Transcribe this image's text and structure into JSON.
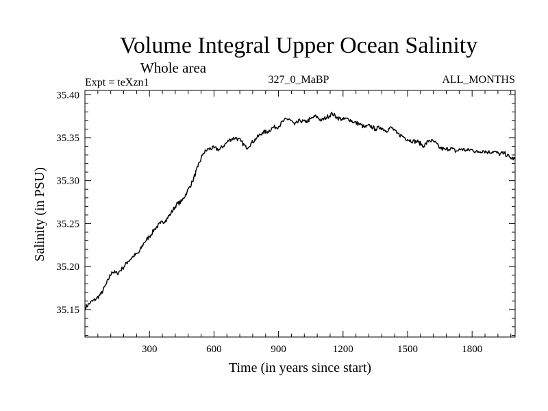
{
  "chart_data": {
    "type": "line",
    "title": "Volume Integral Upper Ocean Salinity",
    "subtitle": "Whole area",
    "left_label": "Expt = teXzn1",
    "center_label": "327_0_MaBP",
    "right_label": "ALL_MONTHS",
    "xlabel": "Time (in years since start)",
    "ylabel": "Salinity (in PSU)",
    "xlim": [
      0,
      2000
    ],
    "ylim": [
      35.118,
      35.405
    ],
    "x_ticks": [
      300,
      600,
      900,
      1200,
      1500,
      1800
    ],
    "x_tick_labels": [
      "300",
      "600",
      "900",
      "1200",
      "1500",
      "1800"
    ],
    "y_ticks": [
      35.15,
      35.2,
      35.25,
      35.3,
      35.35,
      35.4
    ],
    "y_tick_labels": [
      "35.15",
      "35.20",
      "35.25",
      "35.30",
      "35.35",
      "35.40"
    ],
    "grid": false,
    "series": [
      {
        "name": "salinity",
        "x": [
          0,
          25,
          50,
          75,
          100,
          125,
          150,
          175,
          200,
          225,
          250,
          275,
          300,
          325,
          350,
          375,
          400,
          425,
          450,
          475,
          500,
          525,
          550,
          575,
          600,
          625,
          650,
          675,
          700,
          725,
          750,
          775,
          800,
          825,
          850,
          875,
          900,
          925,
          950,
          975,
          1000,
          1025,
          1050,
          1075,
          1100,
          1125,
          1150,
          1175,
          1200,
          1225,
          1250,
          1275,
          1300,
          1325,
          1350,
          1375,
          1400,
          1425,
          1450,
          1475,
          1500,
          1525,
          1550,
          1575,
          1600,
          1625,
          1650,
          1675,
          1700,
          1725,
          1750,
          1775,
          1800,
          1825,
          1850,
          1875,
          1900,
          1925,
          1950,
          1975,
          2000
        ],
        "y": [
          35.152,
          35.158,
          35.162,
          35.168,
          35.18,
          35.194,
          35.192,
          35.198,
          35.206,
          35.212,
          35.216,
          35.228,
          35.235,
          35.244,
          35.25,
          35.254,
          35.262,
          35.272,
          35.276,
          35.287,
          35.299,
          35.316,
          35.332,
          35.337,
          35.338,
          35.336,
          35.342,
          35.348,
          35.35,
          35.346,
          35.338,
          35.344,
          35.35,
          35.356,
          35.357,
          35.362,
          35.363,
          35.37,
          35.372,
          35.365,
          35.37,
          35.368,
          35.372,
          35.375,
          35.37,
          35.374,
          35.378,
          35.373,
          35.371,
          35.372,
          35.368,
          35.366,
          35.362,
          35.364,
          35.36,
          35.362,
          35.358,
          35.362,
          35.355,
          35.352,
          35.348,
          35.346,
          35.345,
          35.34,
          35.347,
          35.345,
          35.338,
          35.336,
          35.338,
          35.334,
          35.337,
          35.335,
          35.336,
          35.333,
          35.335,
          35.333,
          35.334,
          35.331,
          35.332,
          35.327,
          35.325
        ]
      }
    ]
  }
}
